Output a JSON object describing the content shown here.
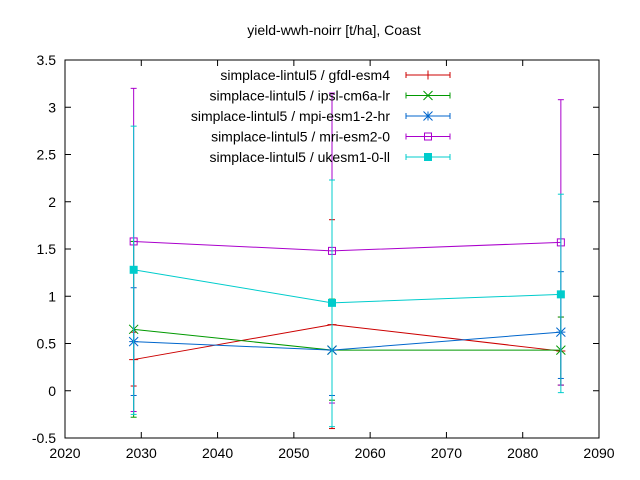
{
  "chart_data": {
    "type": "line",
    "title": "yield-wwh-noirr [t/ha], Coast",
    "xlabel": "",
    "ylabel": "",
    "xlim": [
      2020,
      2090
    ],
    "ylim": [
      -0.5,
      3.5
    ],
    "xticks": [
      2020,
      2030,
      2040,
      2050,
      2060,
      2070,
      2080,
      2090
    ],
    "yticks": [
      -0.5,
      0,
      0.5,
      1,
      1.5,
      2,
      2.5,
      3,
      3.5
    ],
    "grid": false,
    "legend_position": "top-right",
    "x": [
      2029,
      2055,
      2085
    ],
    "series": [
      {
        "name": "simplace-lintul5 / gfdl-esm4",
        "color": "#cc0000",
        "marker": "plus",
        "values": [
          0.33,
          0.7,
          0.42
        ],
        "err_low": [
          0.05,
          -0.4,
          0.06
        ],
        "err_high": [
          0.62,
          1.81,
          0.78
        ]
      },
      {
        "name": "simplace-lintul5 / ipsl-cm6a-lr",
        "color": "#009900",
        "marker": "cross",
        "values": [
          0.65,
          0.43,
          0.43
        ],
        "err_low": [
          -0.28,
          -0.1,
          0.06
        ],
        "err_high": [
          1.58,
          0.97,
          0.78
        ]
      },
      {
        "name": "simplace-lintul5 / mpi-esm1-2-hr",
        "color": "#0066cc",
        "marker": "star",
        "values": [
          0.52,
          0.43,
          0.62
        ],
        "err_low": [
          -0.05,
          -0.05,
          0.13
        ],
        "err_high": [
          1.09,
          0.91,
          1.26
        ]
      },
      {
        "name": "simplace-lintul5 / mri-esm2-0",
        "color": "#aa00cc",
        "marker": "square-open",
        "values": [
          1.58,
          1.48,
          1.57
        ],
        "err_low": [
          -0.22,
          -0.13,
          0.06
        ],
        "err_high": [
          3.2,
          3.15,
          3.08
        ]
      },
      {
        "name": "simplace-lintul5 / ukesm1-0-ll",
        "color": "#00cccc",
        "marker": "square-filled",
        "values": [
          1.28,
          0.93,
          1.02
        ],
        "err_low": [
          -0.25,
          -0.38,
          -0.02
        ],
        "err_high": [
          2.8,
          2.23,
          2.08
        ]
      }
    ]
  }
}
